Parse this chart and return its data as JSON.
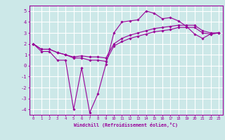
{
  "xlabel": "Windchill (Refroidissement éolien,°C)",
  "bg_color": "#cce8e8",
  "grid_color": "#ffffff",
  "line_color": "#990099",
  "xlim": [
    -0.5,
    23.5
  ],
  "ylim": [
    -4.5,
    5.5
  ],
  "yticks": [
    5,
    4,
    3,
    2,
    1,
    0,
    -1,
    -2,
    -3,
    -4
  ],
  "xticks": [
    0,
    1,
    2,
    3,
    4,
    5,
    6,
    7,
    8,
    9,
    10,
    11,
    12,
    13,
    14,
    15,
    16,
    17,
    18,
    19,
    20,
    21,
    22,
    23
  ],
  "series": [
    [
      2.0,
      1.3,
      1.3,
      0.5,
      0.5,
      -4.0,
      -0.2,
      -4.3,
      -2.6,
      0.1,
      3.0,
      4.0,
      4.1,
      4.2,
      5.0,
      4.8,
      4.3,
      4.4,
      4.1,
      3.6,
      2.9,
      2.5,
      2.9,
      3.0
    ],
    [
      2.0,
      1.5,
      1.5,
      1.2,
      1.0,
      0.7,
      0.7,
      0.5,
      0.5,
      0.4,
      1.8,
      2.2,
      2.5,
      2.7,
      2.9,
      3.1,
      3.2,
      3.3,
      3.5,
      3.5,
      3.5,
      3.0,
      2.9,
      3.0
    ],
    [
      2.0,
      1.5,
      1.5,
      1.2,
      1.0,
      0.8,
      0.9,
      0.8,
      0.8,
      0.7,
      2.0,
      2.5,
      2.8,
      3.0,
      3.2,
      3.4,
      3.5,
      3.6,
      3.7,
      3.7,
      3.7,
      3.2,
      3.0,
      3.0
    ]
  ]
}
